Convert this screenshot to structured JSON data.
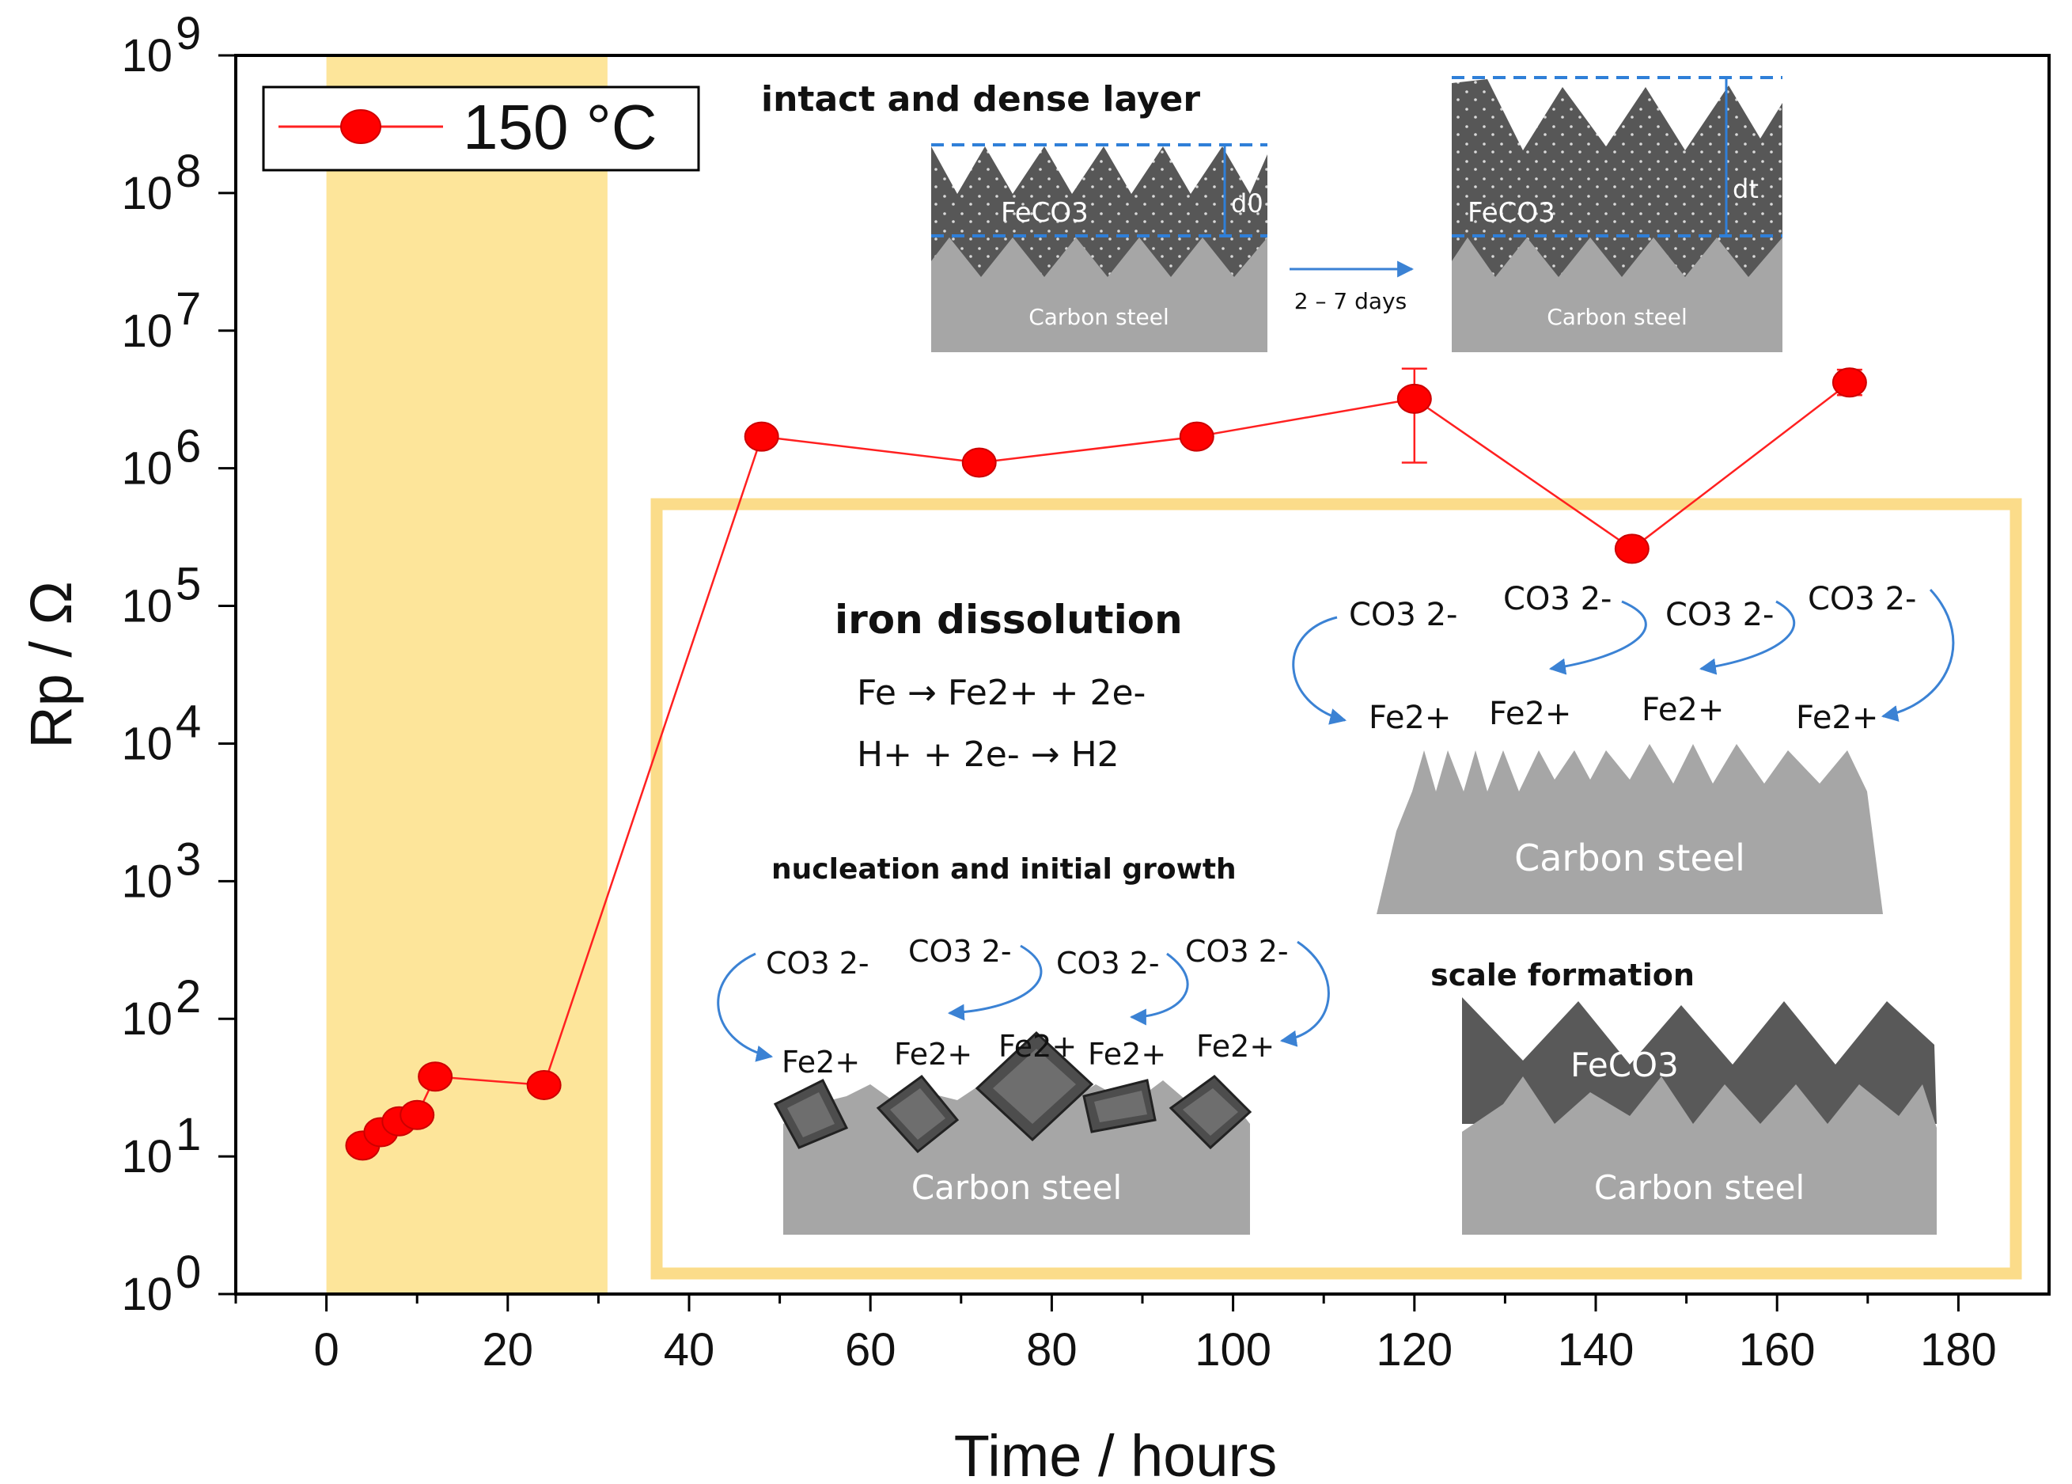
{
  "chart_data": {
    "type": "scatter",
    "xlabel": "Time / hours",
    "ylabel": "Rp / Ω",
    "xlim": [
      -10,
      190
    ],
    "ylim_log10": [
      0,
      9
    ],
    "x_ticks": [
      "0",
      "20",
      "40",
      "60",
      "80",
      "100",
      "120",
      "140",
      "160",
      "180"
    ],
    "x_tick_values": [
      0,
      20,
      40,
      60,
      80,
      100,
      120,
      140,
      160,
      180
    ],
    "y_tick_base": "10",
    "y_tick_exponents": [
      "0",
      "1",
      "2",
      "3",
      "4",
      "5",
      "6",
      "7",
      "8",
      "9"
    ],
    "highlight_band_x": [
      0,
      31
    ],
    "legend": {
      "label": "150 °C",
      "placement": "top-left"
    },
    "series": [
      {
        "name": "150 °C",
        "color": "#ff0000",
        "points": [
          {
            "x": 4,
            "y": 12
          },
          {
            "x": 6,
            "y": 15
          },
          {
            "x": 8,
            "y": 18
          },
          {
            "x": 10,
            "y": 20
          },
          {
            "x": 12,
            "y": 38
          },
          {
            "x": 24,
            "y": 33
          },
          {
            "x": 48,
            "y": 1700000
          },
          {
            "x": 72,
            "y": 1100000
          },
          {
            "x": 96,
            "y": 1700000
          },
          {
            "x": 120,
            "y": 3200000,
            "err_low": 1100000,
            "err_high": 5300000
          },
          {
            "x": 144,
            "y": 260000
          },
          {
            "x": 168,
            "y": 4200000,
            "err_low": 3400000,
            "err_high": 5200000
          }
        ]
      }
    ]
  },
  "colors": {
    "band": "#fde59a",
    "box_border": "#fbdc8a",
    "steel": "#a6a6a6",
    "scale": "#595959",
    "arrow": "#4a90d9",
    "dash": "#2f7fd8"
  },
  "insets": {
    "top": {
      "title": "intact and dense layer",
      "left_layer": "FeCO3",
      "left_thickness": "d0",
      "right_layer": "FeCO3",
      "right_thickness": "dt",
      "arrow_label": "2 – 7 days",
      "steel_label": "Carbon steel"
    },
    "dissolution": {
      "title": "iron dissolution",
      "eq1": "Fe → Fe2+ + 2e-",
      "eq2": "H+ + 2e- → H2",
      "ions": [
        "CO3 2-",
        "CO3 2-",
        "CO3 2-",
        "CO3 2-"
      ],
      "cations": [
        "Fe2+",
        "Fe2+",
        "Fe2+",
        "Fe2+"
      ],
      "steel_label": "Carbon steel"
    },
    "nucleation": {
      "title": "nucleation and initial growth",
      "ions": [
        "CO3 2-",
        "CO3 2-",
        "CO3 2-",
        "CO3 2-"
      ],
      "cations": [
        "Fe2+",
        "Fe2+",
        "Fe2+",
        "Fe2+",
        "Fe2+"
      ],
      "steel_label": "Carbon steel"
    },
    "scale": {
      "title": "scale formation",
      "layer": "FeCO3",
      "steel_label": "Carbon steel"
    }
  }
}
